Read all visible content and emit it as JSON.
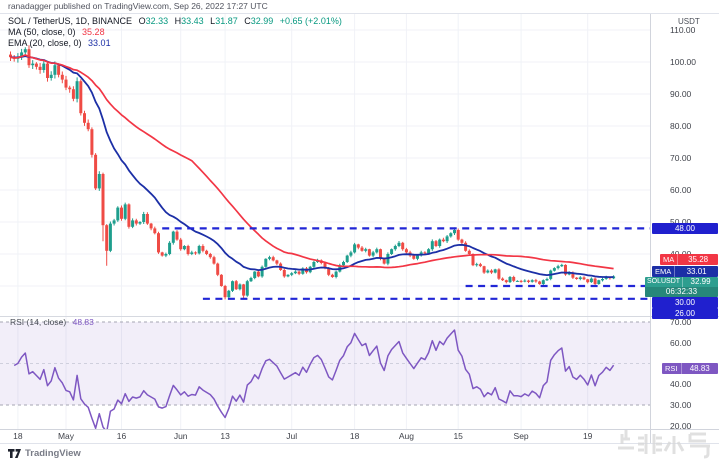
{
  "attribution": "ranadagger published on TradingView.com, Sep 26, 2022 17:27 UTC",
  "symbol_bar": {
    "symbol": "SOL / TetherUS, 1D, BINANCE",
    "ohlc": [
      {
        "k": "O",
        "v": "32.33"
      },
      {
        "k": "H",
        "v": "33.43"
      },
      {
        "k": "L",
        "v": "31.87"
      },
      {
        "k": "C",
        "v": "32.99"
      }
    ],
    "change": "+0.65 (+2.01%)"
  },
  "indicators": {
    "ma": {
      "label": "MA (50, close, 0)",
      "value": "35.28"
    },
    "ema": {
      "label": "EMA (20, close, 0)",
      "value": "33.01"
    },
    "rsi": {
      "label": "RSI (14, close)",
      "value": "48.83"
    }
  },
  "axis": {
    "currency": "USDT",
    "price_labels": [
      110,
      100,
      90,
      80,
      70,
      60,
      50,
      40
    ],
    "rsi_labels": [
      70,
      60,
      40,
      30,
      20
    ],
    "badges": {
      "level_48": "48.00",
      "level_30": "30.00",
      "level_26": "26.00",
      "ma": {
        "tag": "MA",
        "value": "35.28"
      },
      "ema": {
        "tag": "EMA",
        "value": "33.01"
      },
      "price": {
        "tag": "SOLUSDT",
        "value": "32.99",
        "countdown": "06:32:33"
      },
      "rsi": {
        "tag": "RSI",
        "value": "48.83"
      }
    }
  },
  "time_axis": {
    "ticks": [
      {
        "label": "18",
        "i": 2
      },
      {
        "label": "May",
        "i": 15
      },
      {
        "label": "16",
        "i": 30
      },
      {
        "label": "Jun",
        "i": 46
      },
      {
        "label": "13",
        "i": 58
      },
      {
        "label": "Jul",
        "i": 76
      },
      {
        "label": "18",
        "i": 93
      },
      {
        "label": "Aug",
        "i": 107
      },
      {
        "label": "15",
        "i": 121
      },
      {
        "label": "Sep",
        "i": 138
      },
      {
        "label": "19",
        "i": 156
      }
    ]
  },
  "footer": {
    "logo_text": "TradingView",
    "watermark": "非小号"
  },
  "colors": {
    "up": "#1E9E8D",
    "down": "#EF4B45",
    "ma_line": "#F23645",
    "ema_line": "#1C2FA6",
    "level_line": "#2126D6",
    "rsi_line": "#7E57C2",
    "rsi_band_fill": "rgba(126,87,194,0.10)",
    "band_dash": "#a6a6b3",
    "mid_dash": "#cfcfdd",
    "grid": "#f0f2f7",
    "accent_teal": "#089981"
  },
  "chart_data": {
    "type": "candlestick",
    "symbol": "SOLUSDT",
    "interval": "1D",
    "start_date": "2022-04-16",
    "end_date": "2022-09-26",
    "price_axis_range": [
      20.5,
      112
    ],
    "rsi_axis_range": [
      15,
      75
    ],
    "closes": [
      101.5,
      101,
      101.5,
      103,
      104,
      99,
      99.5,
      98.5,
      97.5,
      99.5,
      95,
      96,
      99,
      96,
      94.5,
      92,
      91.5,
      88.5,
      94,
      84,
      81,
      79,
      71,
      60.5,
      65,
      49,
      41,
      49.5,
      50.5,
      54.5,
      51,
      55.5,
      48.5,
      50.5,
      49.5,
      50,
      52.5,
      49.5,
      48,
      46.5,
      40.5,
      39.5,
      40,
      43.5,
      47,
      44.5,
      41.5,
      42.5,
      40,
      40.5,
      40.2,
      42.5,
      41,
      40,
      39,
      37,
      33.5,
      30,
      26.5,
      28.5,
      31.5,
      29,
      30.5,
      27,
      31.5,
      32.5,
      34.5,
      33,
      36,
      38.5,
      39,
      38,
      37,
      35,
      33,
      33.5,
      34,
      34.5,
      33.8,
      35.5,
      34.3,
      36,
      37.5,
      38,
      37.2,
      35.5,
      33.5,
      32.8,
      34.5,
      36.5,
      37.5,
      39.5,
      40.5,
      43,
      42,
      41,
      41.5,
      39.5,
      40.5,
      41.5,
      38.5,
      37,
      40,
      41.5,
      42.5,
      43.5,
      41.5,
      40.5,
      39.5,
      38.5,
      39.5,
      40.5,
      40.2,
      41.5,
      44,
      42.5,
      44.5,
      44,
      45.5,
      46.5,
      47.5,
      44.5,
      43.5,
      41,
      40,
      36.5,
      36.8,
      36.2,
      34.2,
      34.8,
      34.2,
      35.2,
      32.3,
      31.8,
      31.2,
      32.8,
      31.6,
      31.6,
      31.4,
      31.7,
      31.3,
      31.8,
      31.4,
      30.6,
      31.8,
      32.2,
      34.8,
      35.6,
      36.2,
      36.6,
      33.6,
      34.2,
      32.6,
      32.2,
      32.7,
      32.1,
      31.2,
      32.3,
      30.6,
      31.8,
      32.2,
      32.8,
      32.4,
      32.99
    ],
    "wick_overrides": {
      "25": {
        "low": 44.0
      },
      "26": {
        "low": 36.3
      },
      "58": {
        "low": 25.8
      },
      "63": {
        "low": 26.0
      },
      "120": {
        "high": 48.3
      }
    },
    "overlays": [
      {
        "name": "MA",
        "period": 50,
        "final_value": 35.28
      },
      {
        "name": "EMA",
        "period": 20,
        "final_value": 33.01
      }
    ],
    "levels": [
      {
        "price": 48,
        "from": 41
      },
      {
        "price": 30,
        "from": 123
      },
      {
        "price": 26,
        "from": 52
      }
    ],
    "rsi": {
      "period": 14,
      "final_value": 48.83,
      "bands": [
        70,
        30
      ],
      "mid": 50
    }
  }
}
